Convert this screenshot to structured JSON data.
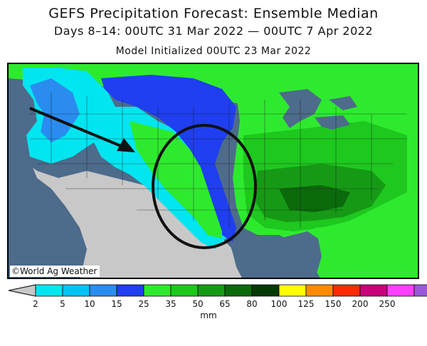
{
  "title": "GEFS Precipitation Forecast: Ensemble Median",
  "subtitle": "Days 8–14: 00UTC 31 Mar 2022 — 00UTC 7 Apr 2022",
  "init_line": "Model Initialized 00UTC 23 Mar 2022",
  "copyright": "©World Ag Weather",
  "legend": {
    "units": "mm",
    "ticks": [
      "2",
      "5",
      "10",
      "15",
      "25",
      "35",
      "50",
      "65",
      "80",
      "100",
      "125",
      "150",
      "200",
      "250"
    ],
    "colors": [
      "#00e5f0",
      "#00c3f5",
      "#2b8cf0",
      "#1f3ff0",
      "#2eea2e",
      "#1ec81e",
      "#169a16",
      "#0b6a0b",
      "#053a05",
      "#ffff00",
      "#ff8c00",
      "#ff2a00",
      "#c8007a",
      "#ff40ff",
      "#9b59d9"
    ],
    "below_color": "#c8c8c8",
    "above_color": "#ffffff"
  },
  "map_colors": {
    "ocean": "#4d6b8a",
    "dry": "#c8c8c8",
    "cyan": "#00e5f0",
    "sky": "#2b8cf0",
    "blue": "#1f3ff0",
    "green": "#2eea2e",
    "mid_green": "#1ec81e",
    "dark_green": "#169a16",
    "darker_green": "#0b6a0b",
    "lake": "#4d6b8a"
  },
  "annotations": {
    "arrow": "arrow pointing into the central Rockies",
    "circle": "circle around the southern Plains"
  }
}
